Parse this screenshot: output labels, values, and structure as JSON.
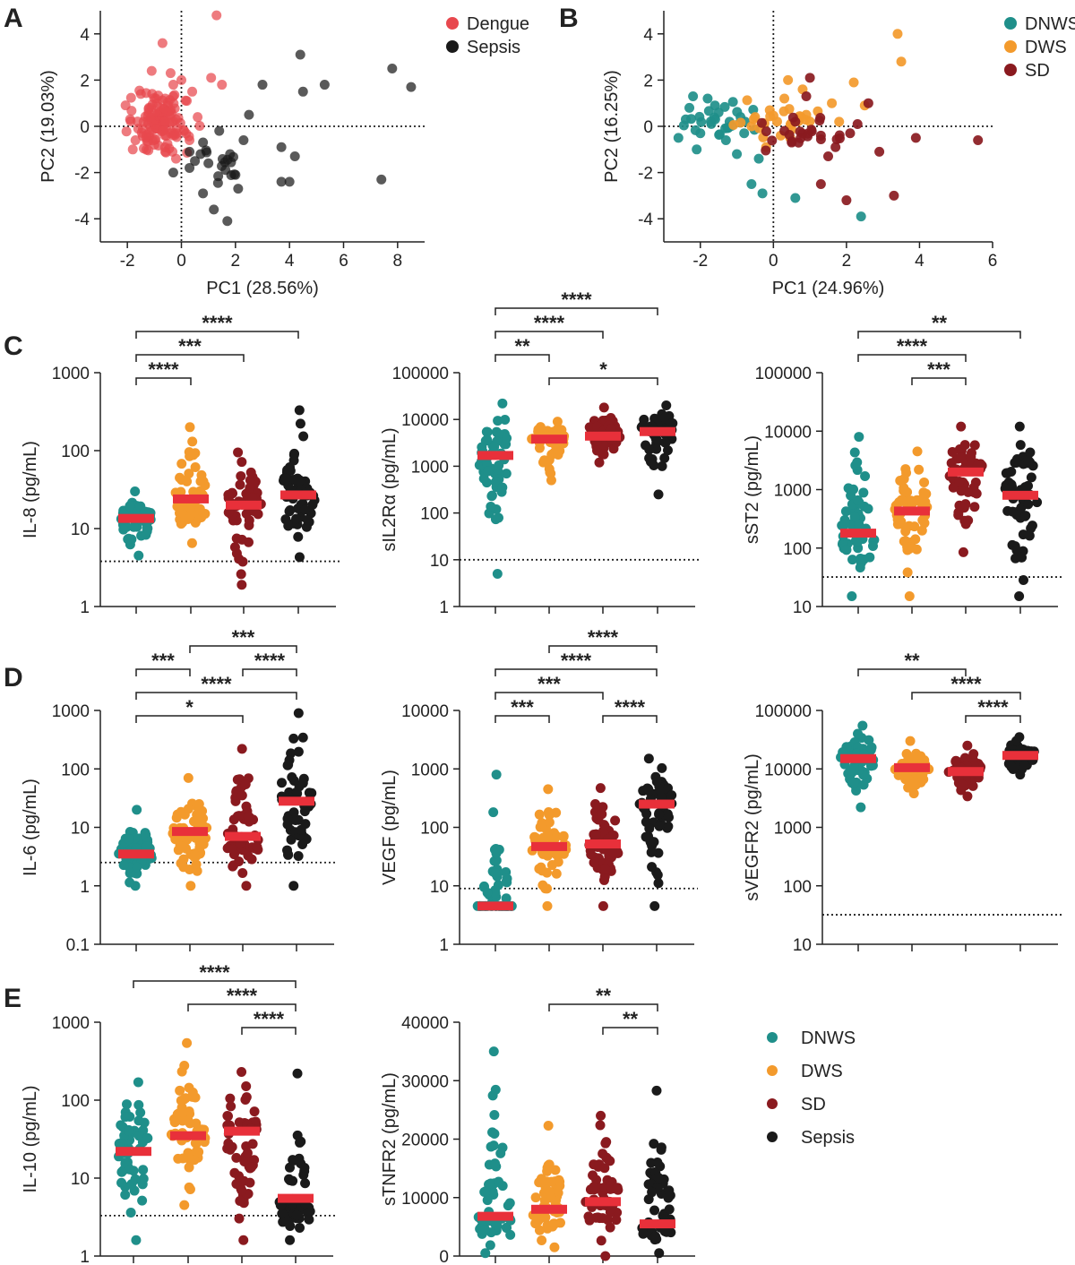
{
  "colors": {
    "dengue": "#e8484e",
    "sepsis": "#1a1a1a",
    "dnws": "#1f8f8a",
    "dws": "#f39a2c",
    "sd": "#8a1a1f",
    "median": "#e8303a"
  },
  "panel_labels": [
    "A",
    "B",
    "C",
    "D",
    "E"
  ],
  "chart_data": [
    {
      "id": "A",
      "type": "scatter",
      "xlabel": "PC1 (28.56%)",
      "ylabel": "PC2 (19.03%)",
      "xlim": [
        -3,
        9
      ],
      "ylim": [
        -5,
        5
      ],
      "xticks": [
        -2,
        0,
        2,
        4,
        6,
        8
      ],
      "yticks": [
        -4,
        -2,
        0,
        2,
        4
      ],
      "legend": [
        "Dengue",
        "Sepsis"
      ],
      "series": [
        {
          "name": "Dengue",
          "points": [
            [
              1.3,
              4.8
            ],
            [
              -0.7,
              3.6
            ],
            [
              -1.1,
              2.4
            ],
            [
              -0.4,
              2.3
            ],
            [
              0.0,
              2.0
            ],
            [
              1.5,
              1.8
            ],
            [
              1.1,
              2.1
            ],
            [
              -0.3,
              1.8
            ],
            [
              -1.5,
              1.4
            ],
            [
              -0.6,
              1.2
            ],
            [
              0.2,
              1.1
            ],
            [
              -1.9,
              0.3
            ],
            [
              -1.2,
              0.8
            ],
            [
              -0.9,
              0.5
            ],
            [
              -0.5,
              0.9
            ],
            [
              -0.2,
              0.3
            ],
            [
              -1.6,
              -0.1
            ],
            [
              -0.8,
              0.0
            ],
            [
              -1.3,
              -0.5
            ],
            [
              -0.4,
              -0.3
            ],
            [
              0.1,
              -0.2
            ],
            [
              -1.0,
              -0.8
            ],
            [
              -1.8,
              -1.0
            ],
            [
              -0.6,
              -1.1
            ],
            [
              0.3,
              -0.6
            ],
            [
              -0.2,
              -1.4
            ],
            [
              -1.4,
              0.2
            ],
            [
              -0.7,
              0.6
            ],
            [
              0.6,
              0.4
            ],
            [
              -1.1,
              -0.2
            ],
            [
              -0.3,
              1.3
            ],
            [
              0.4,
              1.5
            ],
            [
              -1.7,
              -0.6
            ],
            [
              -0.9,
              1.0
            ]
          ]
        },
        {
          "name": "Sepsis",
          "points": [
            [
              4.4,
              3.1
            ],
            [
              7.8,
              2.5
            ],
            [
              8.5,
              1.7
            ],
            [
              3.0,
              1.8
            ],
            [
              4.5,
              1.5
            ],
            [
              5.3,
              1.8
            ],
            [
              2.5,
              0.5
            ],
            [
              1.4,
              -0.2
            ],
            [
              0.8,
              -0.7
            ],
            [
              0.3,
              -1.1
            ],
            [
              -0.3,
              -2.0
            ],
            [
              0.5,
              -1.5
            ],
            [
              1.8,
              -1.2
            ],
            [
              2.3,
              -0.6
            ],
            [
              3.7,
              -0.9
            ],
            [
              4.2,
              -1.3
            ],
            [
              7.4,
              -2.3
            ],
            [
              3.7,
              -2.4
            ],
            [
              4.0,
              -2.4
            ],
            [
              2.1,
              -2.7
            ],
            [
              0.8,
              -2.9
            ],
            [
              1.2,
              -3.6
            ],
            [
              1.7,
              -4.1
            ],
            [
              0.3,
              -1.8
            ],
            [
              1.0,
              -1.6
            ],
            [
              2.0,
              -2.1
            ]
          ]
        }
      ]
    },
    {
      "id": "B",
      "type": "scatter",
      "xlabel": "PC1 (24.96%)",
      "ylabel": "PC2 (16.25%)",
      "xlim": [
        -3,
        6
      ],
      "ylim": [
        -5,
        5
      ],
      "xticks": [
        -2,
        0,
        2,
        4,
        6
      ],
      "yticks": [
        -4,
        -2,
        0,
        2,
        4
      ],
      "legend": [
        "DNWS",
        "DWS",
        "SD"
      ],
      "series": [
        {
          "name": "DNWS",
          "points": [
            [
              -2.2,
              1.3
            ],
            [
              -1.8,
              1.2
            ],
            [
              -1.5,
              0.6
            ],
            [
              -2.4,
              0.3
            ],
            [
              -2.0,
              -0.3
            ],
            [
              -1.7,
              0.1
            ],
            [
              -1.3,
              -0.6
            ],
            [
              -0.9,
              0.4
            ],
            [
              -2.6,
              -0.5
            ],
            [
              -2.1,
              -1.0
            ],
            [
              -1.0,
              -1.2
            ],
            [
              -0.4,
              -1.4
            ],
            [
              -0.6,
              -2.5
            ],
            [
              -0.3,
              -2.9
            ],
            [
              0.6,
              -3.1
            ],
            [
              2.4,
              -3.9
            ],
            [
              -1.6,
              0.9
            ],
            [
              -2.3,
              0.8
            ],
            [
              -1.2,
              0.2
            ],
            [
              -0.8,
              -0.3
            ]
          ]
        },
        {
          "name": "DWS",
          "points": [
            [
              3.4,
              4.0
            ],
            [
              3.5,
              2.8
            ],
            [
              2.2,
              1.9
            ],
            [
              0.4,
              2.0
            ],
            [
              0.8,
              1.6
            ],
            [
              -0.1,
              0.7
            ],
            [
              -0.5,
              0.4
            ],
            [
              0.3,
              1.2
            ],
            [
              1.6,
              1.0
            ],
            [
              2.5,
              0.9
            ],
            [
              -0.6,
              0.0
            ],
            [
              0.2,
              -0.4
            ],
            [
              1.8,
              0.2
            ],
            [
              0.9,
              0.5
            ],
            [
              -0.2,
              -0.9
            ]
          ]
        },
        {
          "name": "SD",
          "points": [
            [
              1.0,
              2.1
            ],
            [
              0.9,
              1.3
            ],
            [
              2.6,
              1.0
            ],
            [
              5.6,
              -0.6
            ],
            [
              3.9,
              -0.5
            ],
            [
              2.1,
              -0.3
            ],
            [
              1.3,
              -0.4
            ],
            [
              0.5,
              -0.7
            ],
            [
              1.7,
              -0.9
            ],
            [
              3.3,
              -3.0
            ],
            [
              2.0,
              -3.2
            ],
            [
              1.3,
              -2.5
            ],
            [
              2.9,
              -1.1
            ],
            [
              0.3,
              -0.2
            ],
            [
              0.6,
              0.2
            ],
            [
              1.5,
              -1.3
            ]
          ]
        }
      ]
    },
    {
      "id": "C1",
      "type": "dotplot",
      "scale": "log",
      "ylabel": "IL-8 (pg/mL)",
      "ylim": [
        1,
        1000
      ],
      "yticks": [
        1,
        10,
        100,
        1000
      ],
      "threshold": 3.8,
      "groups": [
        "DNWS",
        "DWS",
        "SD",
        "Sepsis"
      ],
      "medians": [
        13.5,
        24,
        20,
        27
      ],
      "ranges": [
        [
          4.5,
          30
        ],
        [
          6.5,
          200
        ],
        [
          1.9,
          95
        ],
        [
          4.3,
          330
        ]
      ],
      "sig": [
        {
          "a": 0,
          "b": 3,
          "label": "****"
        },
        {
          "a": 0,
          "b": 2,
          "label": "***"
        },
        {
          "a": 0,
          "b": 1,
          "label": "****"
        }
      ]
    },
    {
      "id": "C2",
      "type": "dotplot",
      "scale": "log",
      "ylabel": "sIL2Rα (pg/mL)",
      "ylim": [
        1,
        100000
      ],
      "yticks": [
        1,
        10,
        100,
        1000,
        10000,
        100000
      ],
      "threshold": 10,
      "groups": [
        "DNWS",
        "DWS",
        "SD",
        "Sepsis"
      ],
      "medians": [
        1700,
        3800,
        4400,
        5500
      ],
      "ranges": [
        [
          5,
          22000
        ],
        [
          500,
          9000
        ],
        [
          1200,
          18000
        ],
        [
          250,
          20000
        ]
      ],
      "sig": [
        {
          "a": 0,
          "b": 3,
          "label": "****"
        },
        {
          "a": 0,
          "b": 2,
          "label": "****"
        },
        {
          "a": 0,
          "b": 1,
          "label": "**"
        },
        {
          "a": 1,
          "b": 3,
          "label": "*"
        }
      ]
    },
    {
      "id": "C3",
      "type": "dotplot",
      "scale": "log",
      "ylabel": "sST2 (pg/mL)",
      "ylim": [
        10,
        100000
      ],
      "yticks": [
        10,
        100,
        1000,
        10000,
        100000
      ],
      "threshold": 32,
      "groups": [
        "DNWS",
        "DWS",
        "SD",
        "Sepsis"
      ],
      "medians": [
        180,
        430,
        2000,
        800
      ],
      "ranges": [
        [
          15,
          8000
        ],
        [
          15,
          4500
        ],
        [
          85,
          12000
        ],
        [
          15,
          12000
        ]
      ],
      "sig": [
        {
          "a": 0,
          "b": 3,
          "label": "**"
        },
        {
          "a": 0,
          "b": 2,
          "label": "****"
        },
        {
          "a": 1,
          "b": 2,
          "label": "***"
        }
      ]
    },
    {
      "id": "D1",
      "type": "dotplot",
      "scale": "log",
      "ylabel": "IL-6 (pg/mL)",
      "ylim": [
        0.1,
        1000
      ],
      "yticks": [
        0.1,
        1,
        10,
        100,
        1000
      ],
      "threshold": 2.5,
      "groups": [
        "DNWS",
        "DWS",
        "SD",
        "Sepsis"
      ],
      "medians": [
        3.5,
        8.5,
        7,
        28
      ],
      "ranges": [
        [
          1,
          20
        ],
        [
          1,
          70
        ],
        [
          1,
          220
        ],
        [
          1,
          900
        ]
      ],
      "sig": [
        {
          "a": 1,
          "b": 3,
          "label": "***"
        },
        {
          "a": 2,
          "b": 3,
          "label": "****"
        },
        {
          "a": 0,
          "b": 3,
          "label": "****"
        },
        {
          "a": 0,
          "b": 2,
          "label": "*"
        },
        {
          "a": 0,
          "b": 1,
          "label": "***"
        }
      ]
    },
    {
      "id": "D2",
      "type": "dotplot",
      "scale": "log",
      "ylabel": "VEGF (pg/mL)",
      "ylim": [
        1,
        10000
      ],
      "yticks": [
        1,
        10,
        100,
        1000,
        10000
      ],
      "threshold": 9,
      "groups": [
        "DNWS",
        "DWS",
        "SD",
        "Sepsis"
      ],
      "medians": [
        4.5,
        47,
        52,
        250
      ],
      "ranges": [
        [
          4.5,
          800
        ],
        [
          4.5,
          450
        ],
        [
          4.5,
          470
        ],
        [
          4.5,
          1500
        ]
      ],
      "sig": [
        {
          "a": 1,
          "b": 3,
          "label": "****"
        },
        {
          "a": 0,
          "b": 3,
          "label": "****"
        },
        {
          "a": 0,
          "b": 2,
          "label": "***"
        },
        {
          "a": 0,
          "b": 1,
          "label": "***"
        },
        {
          "a": 2,
          "b": 3,
          "label": "****"
        }
      ]
    },
    {
      "id": "D3",
      "type": "dotplot",
      "scale": "log",
      "ylabel": "sVEGFR2 (pg/mL)",
      "ylim": [
        10,
        100000
      ],
      "yticks": [
        10,
        100,
        1000,
        10000,
        100000
      ],
      "threshold": 32,
      "groups": [
        "DNWS",
        "DWS",
        "SD",
        "Sepsis"
      ],
      "medians": [
        15000,
        10500,
        9000,
        17000
      ],
      "ranges": [
        [
          2200,
          55000
        ],
        [
          3800,
          30000
        ],
        [
          3400,
          25000
        ],
        [
          8000,
          35000
        ]
      ],
      "sig": [
        {
          "a": 0,
          "b": 2,
          "label": "**"
        },
        {
          "a": 1,
          "b": 3,
          "label": "****"
        },
        {
          "a": 2,
          "b": 3,
          "label": "****"
        }
      ]
    },
    {
      "id": "E1",
      "type": "dotplot",
      "scale": "log",
      "ylabel": "IL-10 (pg/mL)",
      "ylim": [
        1,
        1000
      ],
      "yticks": [
        1,
        10,
        100,
        1000
      ],
      "threshold": 3.3,
      "groups": [
        "DNWS",
        "DWS",
        "SD",
        "Sepsis"
      ],
      "medians": [
        22,
        35,
        40,
        5.5
      ],
      "ranges": [
        [
          1.6,
          170
        ],
        [
          4.5,
          540
        ],
        [
          1.6,
          230
        ],
        [
          1.6,
          220
        ]
      ],
      "sig": [
        {
          "a": 0,
          "b": 3,
          "label": "****"
        },
        {
          "a": 1,
          "b": 3,
          "label": "****"
        },
        {
          "a": 2,
          "b": 3,
          "label": "****"
        }
      ]
    },
    {
      "id": "E2",
      "type": "dotplot",
      "scale": "linear",
      "ylabel": "sTNFR2 (pg/mL)",
      "ylim": [
        0,
        40000
      ],
      "yticks": [
        0,
        10000,
        20000,
        30000,
        40000
      ],
      "threshold": null,
      "groups": [
        "DNWS",
        "DWS",
        "SD",
        "Sepsis"
      ],
      "medians": [
        6800,
        8000,
        9300,
        5500
      ],
      "ranges": [
        [
          500,
          35000
        ],
        [
          1500,
          22300
        ],
        [
          0,
          24000
        ],
        [
          500,
          28300
        ]
      ],
      "sig": [
        {
          "a": 1,
          "b": 3,
          "label": "**"
        },
        {
          "a": 2,
          "b": 3,
          "label": "**"
        }
      ]
    }
  ],
  "legend_E": [
    "DNWS",
    "DWS",
    "SD",
    "Sepsis"
  ]
}
